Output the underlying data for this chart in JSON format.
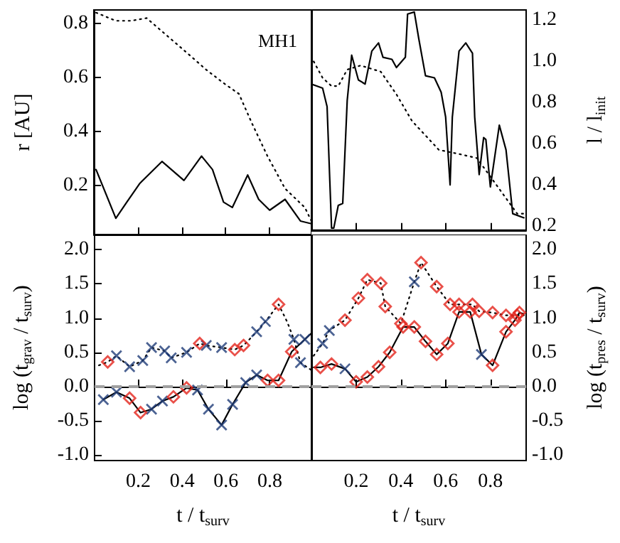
{
  "chart_data": [
    {
      "type": "line",
      "ylabel": "r [AU]",
      "annotations": [
        "MH1"
      ],
      "xlim": [
        0,
        0.99
      ],
      "ylim": [
        0.02,
        0.85
      ],
      "xticks": [
        0.2,
        0.4,
        0.6,
        0.8
      ],
      "yticks": [
        0.2,
        0.4,
        0.6,
        0.8
      ],
      "tick_labels": "y",
      "series": [
        {
          "color": "#000000",
          "line_style": "solid",
          "marker": "none",
          "x": [
            0.01,
            0.1,
            0.15,
            0.21,
            0.31,
            0.41,
            0.49,
            0.54,
            0.59,
            0.63,
            0.7,
            0.75,
            0.8,
            0.87,
            0.94,
            0.99
          ],
          "values": [
            0.26,
            0.08,
            0.14,
            0.21,
            0.29,
            0.22,
            0.31,
            0.26,
            0.14,
            0.12,
            0.24,
            0.15,
            0.11,
            0.15,
            0.07,
            0.06
          ]
        },
        {
          "color": "#000000",
          "line_style": "dotted",
          "marker": "none",
          "x": [
            0.01,
            0.1,
            0.17,
            0.24,
            0.34,
            0.44,
            0.51,
            0.59,
            0.66,
            0.72,
            0.79,
            0.87,
            0.96,
            0.99
          ],
          "values": [
            0.84,
            0.81,
            0.81,
            0.82,
            0.75,
            0.68,
            0.63,
            0.58,
            0.54,
            0.43,
            0.31,
            0.19,
            0.12,
            0.07
          ]
        }
      ]
    },
    {
      "type": "line",
      "ylabel": "l / l$_{init}$",
      "xlim": [
        0,
        0.96
      ],
      "ylim": [
        0.18,
        1.25
      ],
      "xticks": [
        0.2,
        0.4,
        0.6,
        0.8
      ],
      "yticks": [
        0.2,
        0.4,
        0.6,
        0.8,
        {
          "value": 1.0,
          "label": "1.0"
        },
        1.2
      ],
      "tick_labels": "y",
      "series": [
        {
          "color": "#000000",
          "line_style": "solid",
          "marker": "none",
          "x": [
            0,
            0.05,
            0.07,
            0.09,
            0.1,
            0.12,
            0.14,
            0.16,
            0.18,
            0.21,
            0.24,
            0.27,
            0.3,
            0.32,
            0.36,
            0.38,
            0.42,
            0.43,
            0.46,
            0.48,
            0.51,
            0.55,
            0.58,
            0.6,
            0.62,
            0.63,
            0.66,
            0.69,
            0.72,
            0.73,
            0.75,
            0.77,
            0.78,
            0.8,
            0.84,
            0.87,
            0.9,
            0.95
          ],
          "values": [
            0.89,
            0.87,
            0.78,
            0.19,
            0.19,
            0.3,
            0.31,
            0.81,
            1.03,
            0.91,
            0.89,
            1.05,
            1.09,
            1.02,
            1.01,
            0.97,
            1.02,
            1.23,
            1.24,
            1.11,
            0.93,
            0.92,
            0.85,
            0.73,
            0.4,
            0.73,
            1.05,
            1.09,
            1.04,
            0.73,
            0.45,
            0.63,
            0.62,
            0.39,
            0.69,
            0.57,
            0.26,
            0.24
          ]
        },
        {
          "color": "#000000",
          "line_style": "dotted",
          "marker": "none",
          "x": [
            0.01,
            0.05,
            0.09,
            0.12,
            0.16,
            0.22,
            0.31,
            0.38,
            0.45,
            0.51,
            0.57,
            0.66,
            0.74,
            0.8,
            0.86,
            0.92,
            0.95
          ],
          "values": [
            1.0,
            0.92,
            0.88,
            0.88,
            0.96,
            0.98,
            0.95,
            0.84,
            0.71,
            0.64,
            0.57,
            0.55,
            0.53,
            0.44,
            0.35,
            0.26,
            0.26
          ]
        }
      ]
    },
    {
      "type": "line",
      "xlabel": "t / t$_{surv}$",
      "ylabel": "log (t$_{grav}$ / t$_{surv}$)",
      "xlim": [
        0,
        0.99
      ],
      "ylim": [
        -1.08,
        2.22
      ],
      "xticks": [
        0.2,
        0.4,
        0.6,
        0.8
      ],
      "yticks": [
        {
          "value": -1.0,
          "label": "-1.0"
        },
        -0.5,
        {
          "value": 0,
          "label": "0.0"
        },
        0.5,
        {
          "value": 1.0,
          "label": "1.0"
        },
        1.5,
        {
          "value": 2.0,
          "label": "2.0"
        }
      ],
      "ref_lines": [
        {
          "axis": "y",
          "value": 0,
          "color": "#a0a0a0",
          "line_style": "dashed"
        }
      ],
      "series": [
        {
          "color": "#000000",
          "line_style": "solid",
          "marker": "none",
          "x": [
            0.04,
            0.1,
            0.16,
            0.21,
            0.26,
            0.31,
            0.36,
            0.42,
            0.47,
            0.52,
            0.58,
            0.63,
            0.69,
            0.74,
            0.79,
            0.84,
            0.9,
            0.96,
            0.99
          ],
          "values": [
            -0.19,
            -0.08,
            -0.17,
            -0.38,
            -0.33,
            -0.21,
            -0.15,
            -0.02,
            -0.05,
            -0.33,
            -0.56,
            -0.26,
            0.06,
            0.17,
            0.09,
            0.09,
            0.51,
            0.69,
            0.78
          ]
        },
        {
          "color": "#000000",
          "line_style": "dotted",
          "marker": "none",
          "x": [
            0.02,
            0.06,
            0.1,
            0.16,
            0.22,
            0.26,
            0.32,
            0.35,
            0.42,
            0.48,
            0.51,
            0.58,
            0.64,
            0.68,
            0.74,
            0.78,
            0.84,
            0.88,
            0.91,
            0.94,
            0.99
          ],
          "values": [
            0.31,
            0.36,
            0.45,
            0.29,
            0.38,
            0.57,
            0.52,
            0.42,
            0.5,
            0.63,
            0.6,
            0.57,
            0.54,
            0.6,
            0.8,
            0.95,
            1.2,
            0.94,
            0.69,
            0.35,
            0.24
          ]
        },
        {
          "type": "scatter",
          "color": "#1f3c78",
          "marker": "cross",
          "x": [
            0.04,
            0.1,
            0.26,
            0.31,
            0.47,
            0.52,
            0.58,
            0.63,
            0.69,
            0.74,
            0.96,
            0.1,
            0.16,
            0.22,
            0.26,
            0.32,
            0.35,
            0.42,
            0.51,
            0.58,
            0.74,
            0.78,
            0.91,
            0.94
          ],
          "values": [
            -0.19,
            -0.08,
            -0.33,
            -0.21,
            -0.05,
            -0.33,
            -0.56,
            -0.26,
            0.06,
            0.17,
            0.69,
            0.45,
            0.29,
            0.38,
            0.57,
            0.52,
            0.42,
            0.5,
            0.6,
            0.57,
            0.8,
            0.95,
            0.69,
            0.35
          ]
        },
        {
          "type": "scatter",
          "color": "#e3241b",
          "marker": "diamond",
          "x": [
            0.16,
            0.21,
            0.36,
            0.42,
            0.79,
            0.84,
            0.9,
            0.06,
            0.48,
            0.64,
            0.68,
            0.84
          ],
          "values": [
            -0.17,
            -0.38,
            -0.15,
            -0.02,
            0.09,
            0.09,
            0.51,
            0.36,
            0.63,
            0.54,
            0.6,
            1.2
          ]
        }
      ]
    },
    {
      "type": "line",
      "xlabel": "t / t$_{surv}$",
      "ylabel": "log (t$_{pres}$ / t$_{surv}$)",
      "xlim": [
        0,
        0.96
      ],
      "ylim": [
        -1.08,
        2.22
      ],
      "xticks": [
        0.2,
        0.4,
        0.6,
        0.8
      ],
      "yticks": [
        {
          "value": -1.0,
          "label": "-1.0"
        },
        -0.5,
        {
          "value": 0,
          "label": "0.0"
        },
        0.5,
        {
          "value": 1.0,
          "label": "1.0"
        },
        1.5,
        {
          "value": 2.0,
          "label": "2.0"
        }
      ],
      "ref_lines": [
        {
          "axis": "y",
          "value": 0,
          "color": "#a0a0a0",
          "line_style": "dashed"
        }
      ],
      "series": [
        {
          "color": "#000000",
          "line_style": "solid",
          "marker": "none",
          "x": [
            0.01,
            0.04,
            0.09,
            0.15,
            0.2,
            0.25,
            0.3,
            0.35,
            0.41,
            0.46,
            0.51,
            0.56,
            0.61,
            0.66,
            0.71,
            0.76,
            0.81,
            0.87,
            0.91,
            0.93,
            0.95
          ],
          "values": [
            0.28,
            0.28,
            0.33,
            0.26,
            0.07,
            0.14,
            0.29,
            0.5,
            0.87,
            0.87,
            0.66,
            0.47,
            0.63,
            1.09,
            1.09,
            0.47,
            0.31,
            0.8,
            0.97,
            1.08,
            1.06
          ]
        },
        {
          "color": "#000000",
          "line_style": "dotted",
          "marker": "none",
          "x": [
            0.01,
            0.05,
            0.08,
            0.15,
            0.21,
            0.25,
            0.31,
            0.33,
            0.4,
            0.46,
            0.49,
            0.56,
            0.62,
            0.66,
            0.72,
            0.75,
            0.81,
            0.87,
            0.92,
            0.95
          ],
          "values": [
            0.45,
            0.63,
            0.82,
            0.97,
            1.29,
            1.56,
            1.51,
            1.17,
            0.92,
            1.53,
            1.81,
            1.46,
            1.2,
            1.2,
            1.2,
            1.1,
            1.08,
            1.04,
            1.04,
            1.04
          ]
        },
        {
          "type": "scatter",
          "color": "#1f3c78",
          "marker": "cross",
          "x": [
            0.15,
            0.76,
            0.05,
            0.08,
            0.46
          ],
          "values": [
            0.26,
            0.47,
            0.63,
            0.82,
            1.53
          ]
        },
        {
          "type": "scatter",
          "color": "#e3241b",
          "marker": "diamond",
          "x": [
            0.04,
            0.09,
            0.2,
            0.25,
            0.3,
            0.35,
            0.41,
            0.46,
            0.51,
            0.56,
            0.61,
            0.66,
            0.71,
            0.81,
            0.87,
            0.91,
            0.93,
            0.15,
            0.21,
            0.25,
            0.31,
            0.33,
            0.4,
            0.49,
            0.56,
            0.62,
            0.66,
            0.72,
            0.75,
            0.81,
            0.87,
            0.92
          ],
          "values": [
            0.28,
            0.33,
            0.07,
            0.14,
            0.29,
            0.5,
            0.87,
            0.87,
            0.66,
            0.47,
            0.63,
            1.09,
            1.09,
            0.31,
            0.8,
            0.97,
            1.08,
            0.97,
            1.29,
            1.56,
            1.51,
            1.17,
            0.92,
            1.81,
            1.46,
            1.2,
            1.2,
            1.2,
            1.1,
            1.08,
            1.04,
            1.04
          ]
        }
      ]
    }
  ]
}
